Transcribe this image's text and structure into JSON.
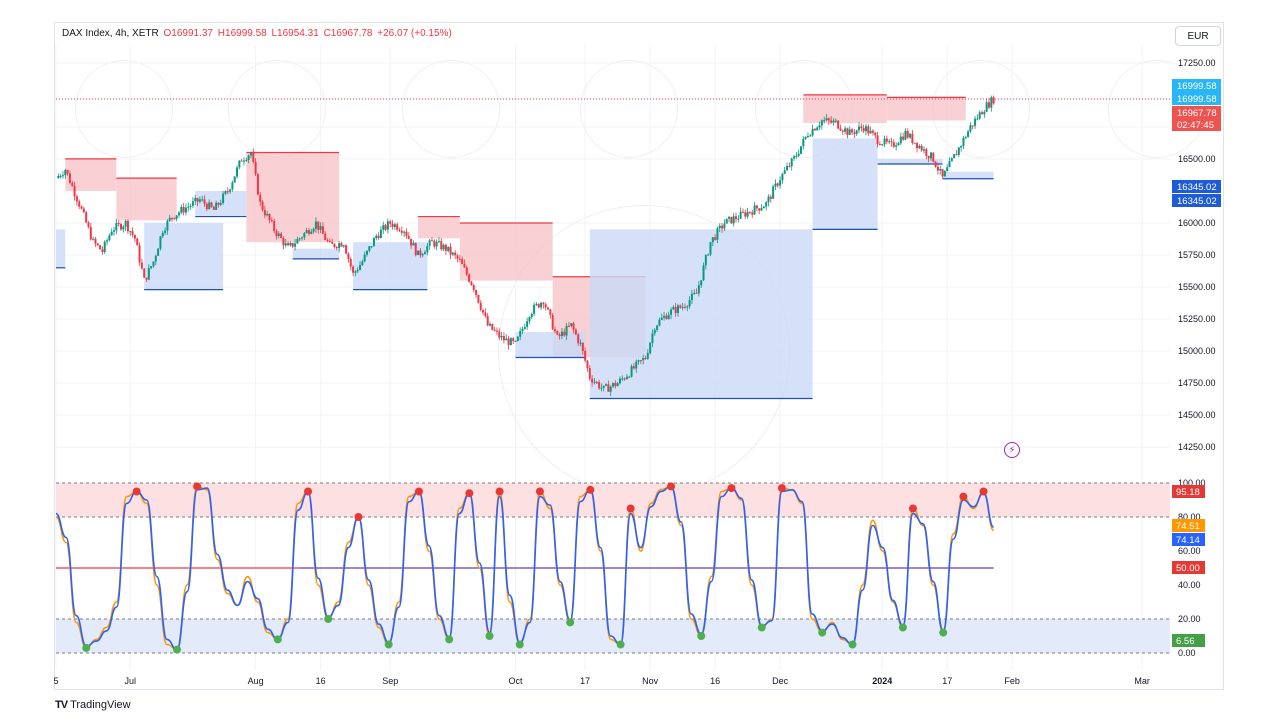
{
  "legend": {
    "symbol": "DAX Index, 4h, XETR",
    "open": "O16991.37",
    "high": "H16999.58",
    "low": "L16954.31",
    "close": "C16967.78",
    "change": "+26.07 (+0.15%)"
  },
  "currency": "EUR",
  "branding": "TradingView",
  "colors": {
    "up": "#089981",
    "down": "#f23645",
    "supply_zone": "#f7c1c5",
    "demand_zone": "#c9d9f7",
    "k_line": "#ff9800",
    "d_line": "#2962ff",
    "overbought_fill": "#fde0e2",
    "oversold_fill": "#e3ebfb",
    "mid_line": "#f23645",
    "mid_line2": "#2962ff",
    "peak_dot": "#e53935",
    "trough_dot": "#4caf50"
  },
  "price_badges": [
    {
      "text": "16999.58",
      "color": "#29b6f6"
    },
    {
      "text": "16999.58",
      "color": "#29b6f6"
    },
    {
      "text": "16967.78",
      "color": "#ef5350"
    },
    {
      "text": "02:47:45",
      "color": "#ef5350"
    },
    {
      "text": "16345.02",
      "color": "#1e5bd6"
    },
    {
      "text": "16345.02",
      "color": "#1e5bd6"
    }
  ],
  "osc_badges": [
    {
      "text": "95.18",
      "color": "#e53935"
    },
    {
      "text": "74.51",
      "color": "#ff9800"
    },
    {
      "text": "74.14",
      "color": "#2962ff"
    },
    {
      "text": "50.00",
      "color": "#e53935"
    },
    {
      "text": "6.56",
      "color": "#43a047"
    }
  ],
  "chart_data": [
    {
      "type": "candlestick",
      "title": "DAX Index, 4h, XETR",
      "y_ticks": [
        "17250.00",
        "16750.00",
        "16500.00",
        "16000.00",
        "15750.00",
        "15500.00",
        "15250.00",
        "15000.00",
        "14750.00",
        "14500.00",
        "14250.00"
      ],
      "ylim": [
        14150,
        17350
      ],
      "x_ticks": [
        "5",
        "Jul",
        "Aug",
        "16",
        "Sep",
        "Oct",
        "17",
        "Nov",
        "16",
        "Dec",
        "2024",
        "17",
        "Feb",
        "Mar"
      ],
      "x_tick_positions": [
        0,
        16,
        43,
        57,
        72,
        99,
        114,
        128,
        142,
        156,
        178,
        192,
        206,
        234
      ],
      "x_range": [
        0,
        240
      ],
      "close_path": [
        [
          0,
          16350
        ],
        [
          2,
          16420
        ],
        [
          5,
          16150
        ],
        [
          8,
          15850
        ],
        [
          10,
          15780
        ],
        [
          12,
          15950
        ],
        [
          15,
          16000
        ],
        [
          17,
          15880
        ],
        [
          19,
          15550
        ],
        [
          21,
          15700
        ],
        [
          23,
          15950
        ],
        [
          25,
          16050
        ],
        [
          28,
          16120
        ],
        [
          31,
          16180
        ],
        [
          34,
          16100
        ],
        [
          37,
          16250
        ],
        [
          40,
          16500
        ],
        [
          42,
          16550
        ],
        [
          44,
          16150
        ],
        [
          47,
          15950
        ],
        [
          50,
          15800
        ],
        [
          53,
          15900
        ],
        [
          56,
          16000
        ],
        [
          59,
          15820
        ],
        [
          62,
          15850
        ],
        [
          64,
          15600
        ],
        [
          66,
          15700
        ],
        [
          69,
          15900
        ],
        [
          72,
          16000
        ],
        [
          75,
          15950
        ],
        [
          78,
          15750
        ],
        [
          81,
          15850
        ],
        [
          84,
          15800
        ],
        [
          87,
          15700
        ],
        [
          90,
          15500
        ],
        [
          93,
          15200
        ],
        [
          96,
          15100
        ],
        [
          99,
          15050
        ],
        [
          102,
          15300
        ],
        [
          105,
          15400
        ],
        [
          108,
          15100
        ],
        [
          111,
          15200
        ],
        [
          113,
          15050
        ],
        [
          115,
          14800
        ],
        [
          118,
          14700
        ],
        [
          121,
          14750
        ],
        [
          124,
          14850
        ],
        [
          127,
          14950
        ],
        [
          129,
          15200
        ],
        [
          132,
          15300
        ],
        [
          135,
          15350
        ],
        [
          138,
          15450
        ],
        [
          141,
          15850
        ],
        [
          144,
          16000
        ],
        [
          147,
          16050
        ],
        [
          150,
          16100
        ],
        [
          153,
          16150
        ],
        [
          156,
          16350
        ],
        [
          159,
          16500
        ],
        [
          162,
          16700
        ],
        [
          165,
          16800
        ],
        [
          168,
          16780
        ],
        [
          171,
          16700
        ],
        [
          174,
          16750
        ],
        [
          177,
          16650
        ],
        [
          180,
          16600
        ],
        [
          183,
          16700
        ],
        [
          186,
          16600
        ],
        [
          189,
          16500
        ],
        [
          191,
          16350
        ],
        [
          194,
          16550
        ],
        [
          197,
          16750
        ],
        [
          200,
          16900
        ],
        [
          202,
          16967.78
        ]
      ],
      "supply_zones": [
        {
          "x0": 2,
          "x1": 13,
          "top": 16500,
          "bottom": 16250
        },
        {
          "x0": 13,
          "x1": 26,
          "top": 16350,
          "bottom": 16020
        },
        {
          "x0": 41,
          "x1": 61,
          "top": 16550,
          "bottom": 15850
        },
        {
          "x0": 78,
          "x1": 87,
          "top": 16050,
          "bottom": 15880
        },
        {
          "x0": 87,
          "x1": 107,
          "top": 16000,
          "bottom": 15550
        },
        {
          "x0": 107,
          "x1": 127,
          "top": 15580,
          "bottom": 14950
        },
        {
          "x0": 161,
          "x1": 179,
          "top": 17000,
          "bottom": 16780
        },
        {
          "x0": 179,
          "x1": 196,
          "top": 16980,
          "bottom": 16800
        }
      ],
      "demand_zones": [
        {
          "x0": 0,
          "x1": 2,
          "top": 15950,
          "bottom": 15650
        },
        {
          "x0": 19,
          "x1": 36,
          "top": 16000,
          "bottom": 15480
        },
        {
          "x0": 30,
          "x1": 41,
          "top": 16250,
          "bottom": 16050
        },
        {
          "x0": 51,
          "x1": 61,
          "top": 15800,
          "bottom": 15720
        },
        {
          "x0": 64,
          "x1": 80,
          "top": 15850,
          "bottom": 15480
        },
        {
          "x0": 99,
          "x1": 114,
          "top": 15150,
          "bottom": 14950
        },
        {
          "x0": 115,
          "x1": 163,
          "top": 15950,
          "bottom": 14630
        },
        {
          "x0": 163,
          "x1": 177,
          "top": 16660,
          "bottom": 15950
        },
        {
          "x0": 177,
          "x1": 191,
          "top": 16500,
          "bottom": 16460
        },
        {
          "x0": 191,
          "x1": 202,
          "top": 16400,
          "bottom": 16345.02
        }
      ],
      "current_price": 16967.78
    },
    {
      "type": "line",
      "title": "Stochastic",
      "y_ticks": [
        "100.00",
        "80.00",
        "60.00",
        "40.00",
        "20.00",
        "0.00"
      ],
      "ylim": [
        0,
        100
      ],
      "levels": {
        "upper": 80,
        "middle": 50,
        "lower": 20
      },
      "series": [
        {
          "name": "",
          "color": "#ff9800",
          "values": [
            80,
            65,
            18,
            3,
            8,
            15,
            30,
            92,
            95,
            88,
            40,
            5,
            2,
            40,
            98,
            96,
            55,
            35,
            28,
            45,
            30,
            12,
            8,
            20,
            88,
            95,
            40,
            20,
            30,
            65,
            80,
            40,
            15,
            5,
            30,
            92,
            95,
            60,
            20,
            8,
            85,
            94,
            50,
            10,
            95,
            30,
            5,
            20,
            95,
            85,
            40,
            18,
            92,
            96,
            60,
            8,
            5,
            85,
            60,
            88,
            96,
            98,
            75,
            20,
            10,
            45,
            95,
            97,
            90,
            40,
            15,
            20,
            97,
            96,
            88,
            20,
            12,
            18,
            8,
            5,
            40,
            78,
            60,
            30,
            15,
            85,
            75,
            40,
            12,
            70,
            92,
            85,
            95,
            72
          ]
        },
        {
          "name": "",
          "color": "#2962ff",
          "values": [
            82,
            68,
            22,
            4,
            7,
            13,
            27,
            88,
            95,
            90,
            45,
            8,
            2,
            36,
            96,
            97,
            58,
            37,
            28,
            42,
            32,
            14,
            8,
            18,
            84,
            95,
            44,
            21,
            28,
            62,
            80,
            43,
            17,
            6,
            27,
            89,
            95,
            63,
            22,
            9,
            82,
            94,
            53,
            12,
            92,
            34,
            6,
            18,
            92,
            87,
            42,
            19,
            89,
            96,
            62,
            10,
            5,
            82,
            62,
            86,
            95,
            98,
            77,
            23,
            11,
            42,
            92,
            97,
            91,
            43,
            16,
            19,
            95,
            96,
            89,
            23,
            13,
            17,
            9,
            5,
            37,
            75,
            62,
            31,
            16,
            82,
            76,
            42,
            13,
            67,
            90,
            86,
            94,
            74
          ]
        }
      ],
      "last_values": {
        "k": 74.51,
        "d": 74.14
      }
    }
  ]
}
